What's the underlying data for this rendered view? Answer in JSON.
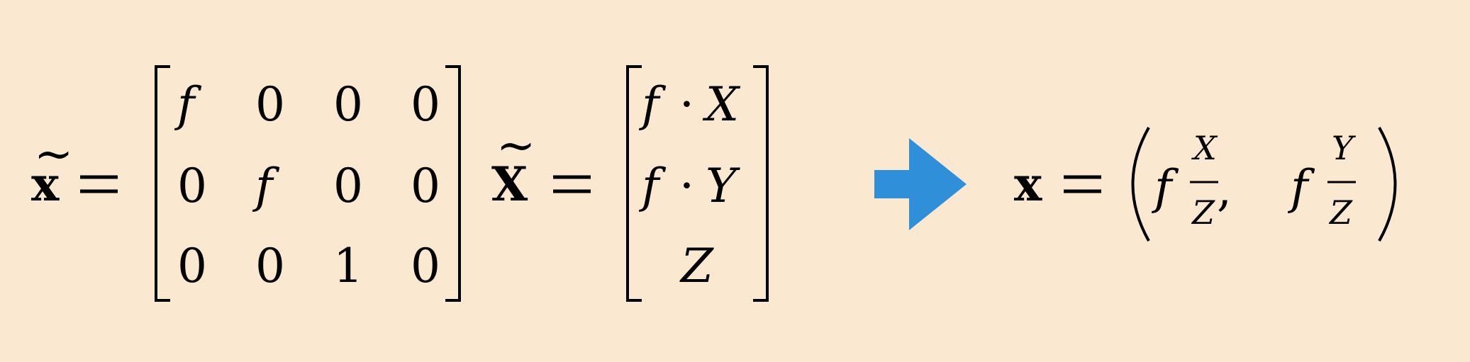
{
  "background_color": "#fbe8d0",
  "arrow_color": "#2f8fd8",
  "lhs": {
    "symbol": "x",
    "tilde": "~"
  },
  "matrix_P": {
    "rows": [
      [
        "f",
        "0",
        "0",
        "0"
      ],
      [
        "0",
        "f",
        "0",
        "0"
      ],
      [
        "0",
        "0",
        "1",
        "0"
      ]
    ]
  },
  "rhs_vector_symbol": {
    "symbol": "X",
    "tilde": "~"
  },
  "result_vector": {
    "rows": [
      {
        "f": "f",
        "dot": "·",
        "var": "X"
      },
      {
        "f": "f",
        "dot": "·",
        "var": "Y"
      },
      {
        "f": "",
        "dot": "",
        "var": "Z"
      }
    ]
  },
  "arrow": {
    "icon": "right-arrow-icon"
  },
  "final": {
    "symbol": "x",
    "f1": "f",
    "num1": "X",
    "den1": "Z",
    "comma": ",",
    "f2": "f",
    "num2": "Y",
    "den2": "Z"
  }
}
